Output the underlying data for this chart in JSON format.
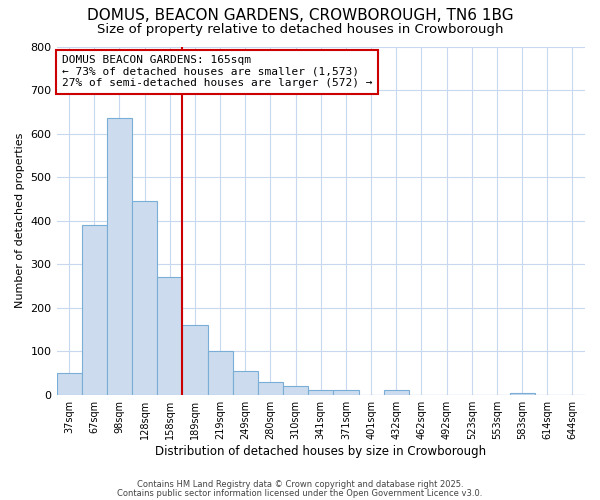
{
  "title1": "DOMUS, BEACON GARDENS, CROWBOROUGH, TN6 1BG",
  "title2": "Size of property relative to detached houses in Crowborough",
  "xlabel": "Distribution of detached houses by size in Crowborough",
  "ylabel": "Number of detached properties",
  "cat_labels": [
    "37sqm",
    "67sqm",
    "98sqm",
    "128sqm",
    "158sqm",
    "189sqm",
    "219sqm",
    "249sqm",
    "280sqm",
    "310sqm",
    "341sqm",
    "371sqm",
    "401sqm",
    "432sqm",
    "462sqm",
    "492sqm",
    "523sqm",
    "553sqm",
    "583sqm",
    "614sqm",
    "644sqm"
  ],
  "values": [
    50,
    390,
    635,
    445,
    270,
    160,
    100,
    55,
    30,
    20,
    10,
    10,
    0,
    10,
    0,
    0,
    0,
    0,
    5,
    0,
    0
  ],
  "bar_color": "#ccdcee",
  "bar_edge_color": "#7aaed6",
  "vline_x": 4.5,
  "vline_color": "#cc0000",
  "annotation_title": "DOMUS BEACON GARDENS: 165sqm",
  "annotation_line1": "← 73% of detached houses are smaller (1,573)",
  "annotation_line2": "27% of semi-detached houses are larger (572) →",
  "annotation_box_color": "#cc0000",
  "ylim": [
    0,
    800
  ],
  "yticks": [
    0,
    100,
    200,
    300,
    400,
    500,
    600,
    700,
    800
  ],
  "footnote1": "Contains HM Land Registry data © Crown copyright and database right 2025.",
  "footnote2": "Contains public sector information licensed under the Open Government Licence v3.0.",
  "bg_color": "#ffffff",
  "plot_bg_color": "#ffffff",
  "grid_color": "#c8d8ee",
  "title_fontsize": 11,
  "subtitle_fontsize": 9.5
}
